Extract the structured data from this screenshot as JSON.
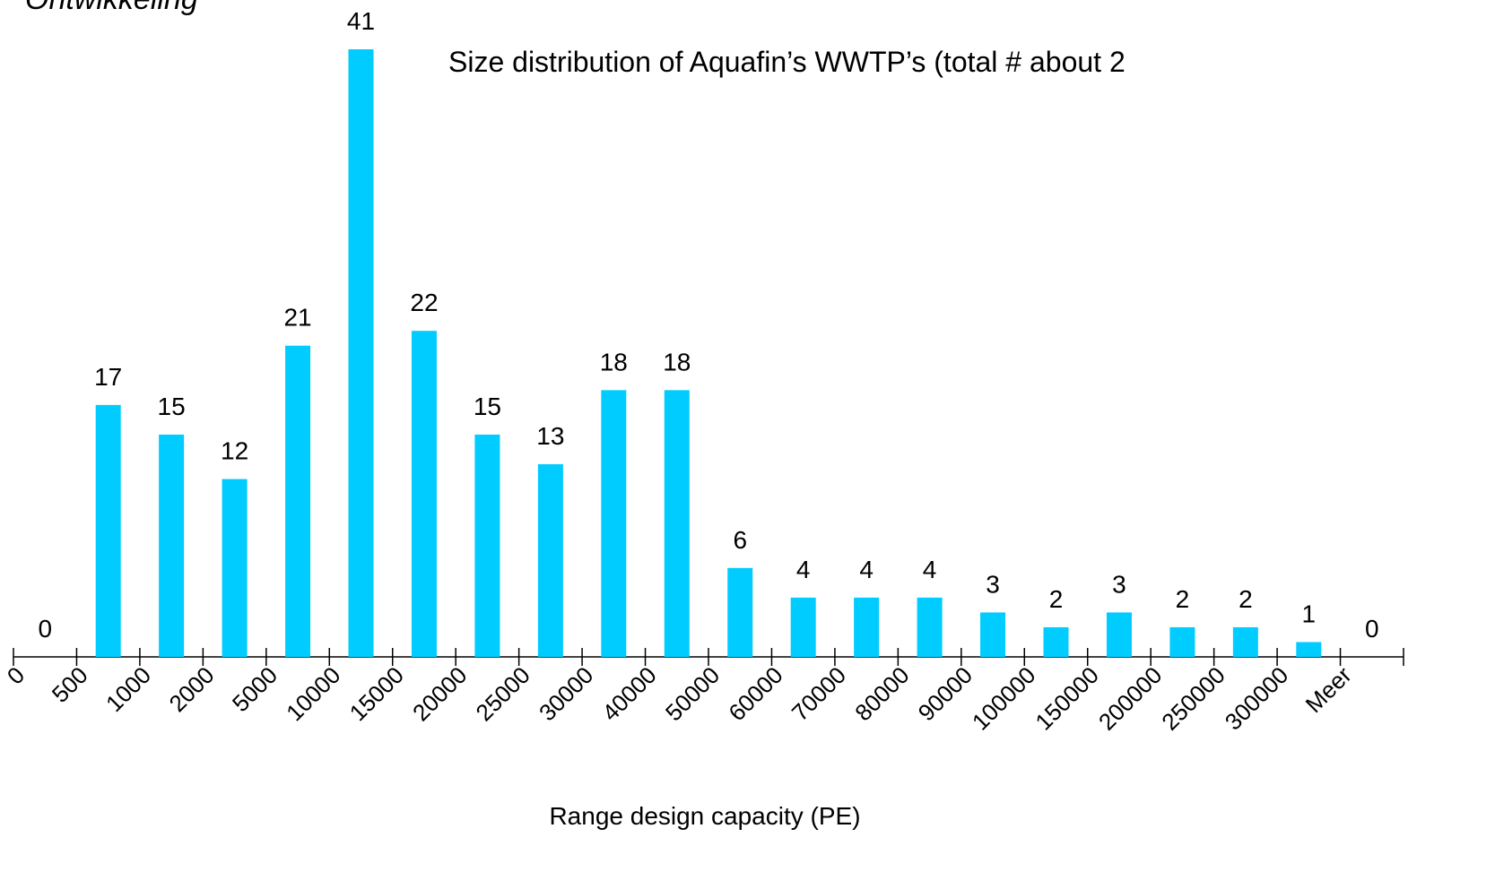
{
  "header": "Ontwikkeling",
  "chart_data": {
    "type": "bar",
    "title": "Size distribution of Aquafin’s WWTP’s (total # about 2",
    "x_label": "Range design capacity (PE)",
    "categories": [
      "0",
      "500",
      "1000",
      "2000",
      "5000",
      "10000",
      "15000",
      "20000",
      "25000",
      "30000",
      "40000",
      "50000",
      "60000",
      "70000",
      "80000",
      "90000",
      "100000",
      "150000",
      "200000",
      "250000",
      "300000",
      "Meer"
    ],
    "values": [
      0,
      17,
      15,
      12,
      21,
      41,
      22,
      15,
      13,
      18,
      18,
      6,
      4,
      4,
      4,
      3,
      2,
      3,
      2,
      2,
      1,
      0
    ],
    "color": "#00ccff"
  }
}
